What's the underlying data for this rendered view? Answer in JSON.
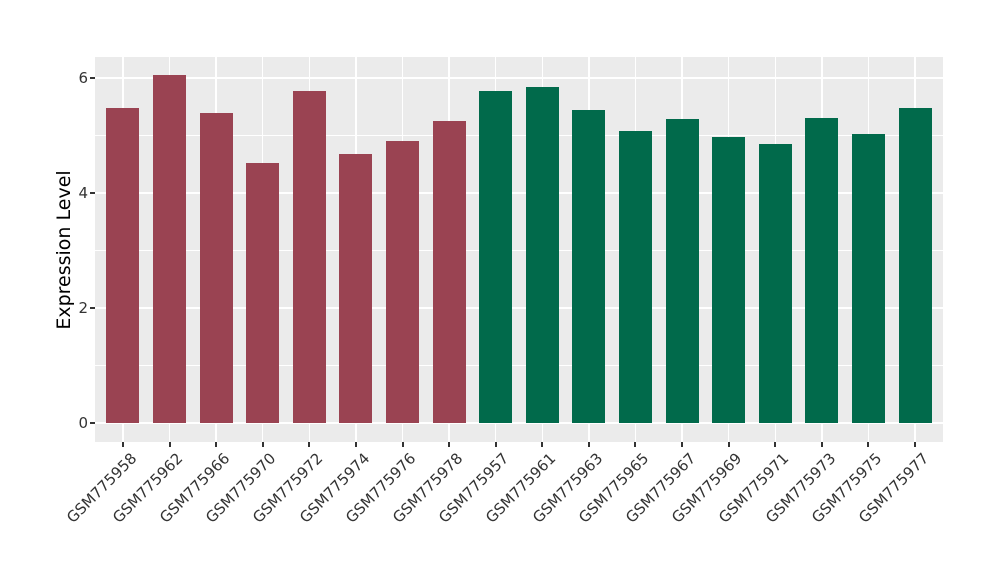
{
  "chart_data": {
    "type": "bar",
    "title": "",
    "xlabel": "",
    "ylabel": "Expression Level",
    "legend": "none",
    "grid": "on",
    "panel_bg": "#EBEBEB",
    "grid_color": "#FFFFFF",
    "axis_text_color": "#333333",
    "yticks_major": [
      0,
      2,
      4,
      6
    ],
    "yticks_minor": [
      1,
      3,
      5
    ],
    "ylim": [
      -0.33,
      6.37
    ],
    "group_colors": {
      "left_group": "#9A4352",
      "right_group": "#016A4B"
    },
    "categories": [
      "GSM775958",
      "GSM775962",
      "GSM775966",
      "GSM775970",
      "GSM775972",
      "GSM775974",
      "GSM775976",
      "GSM775978",
      "GSM775957",
      "GSM775961",
      "GSM775963",
      "GSM775965",
      "GSM775967",
      "GSM775969",
      "GSM775971",
      "GSM775973",
      "GSM775975",
      "GSM775977"
    ],
    "bars": [
      {
        "label": "GSM775958",
        "value": 5.47,
        "color": "#9A4352"
      },
      {
        "label": "GSM775962",
        "value": 6.06,
        "color": "#9A4352"
      },
      {
        "label": "GSM775966",
        "value": 5.39,
        "color": "#9A4352"
      },
      {
        "label": "GSM775970",
        "value": 4.52,
        "color": "#9A4352"
      },
      {
        "label": "GSM775972",
        "value": 5.78,
        "color": "#9A4352"
      },
      {
        "label": "GSM775974",
        "value": 4.68,
        "color": "#9A4352"
      },
      {
        "label": "GSM775976",
        "value": 4.91,
        "color": "#9A4352"
      },
      {
        "label": "GSM775978",
        "value": 5.25,
        "color": "#9A4352"
      },
      {
        "label": "GSM775957",
        "value": 5.78,
        "color": "#016A4B"
      },
      {
        "label": "GSM775961",
        "value": 5.85,
        "color": "#016A4B"
      },
      {
        "label": "GSM775963",
        "value": 5.44,
        "color": "#016A4B"
      },
      {
        "label": "GSM775965",
        "value": 5.08,
        "color": "#016A4B"
      },
      {
        "label": "GSM775967",
        "value": 5.29,
        "color": "#016A4B"
      },
      {
        "label": "GSM775969",
        "value": 4.97,
        "color": "#016A4B"
      },
      {
        "label": "GSM775971",
        "value": 4.86,
        "color": "#016A4B"
      },
      {
        "label": "GSM775973",
        "value": 5.3,
        "color": "#016A4B"
      },
      {
        "label": "GSM775975",
        "value": 5.02,
        "color": "#016A4B"
      },
      {
        "label": "GSM775977",
        "value": 5.47,
        "color": "#016A4B"
      }
    ]
  }
}
